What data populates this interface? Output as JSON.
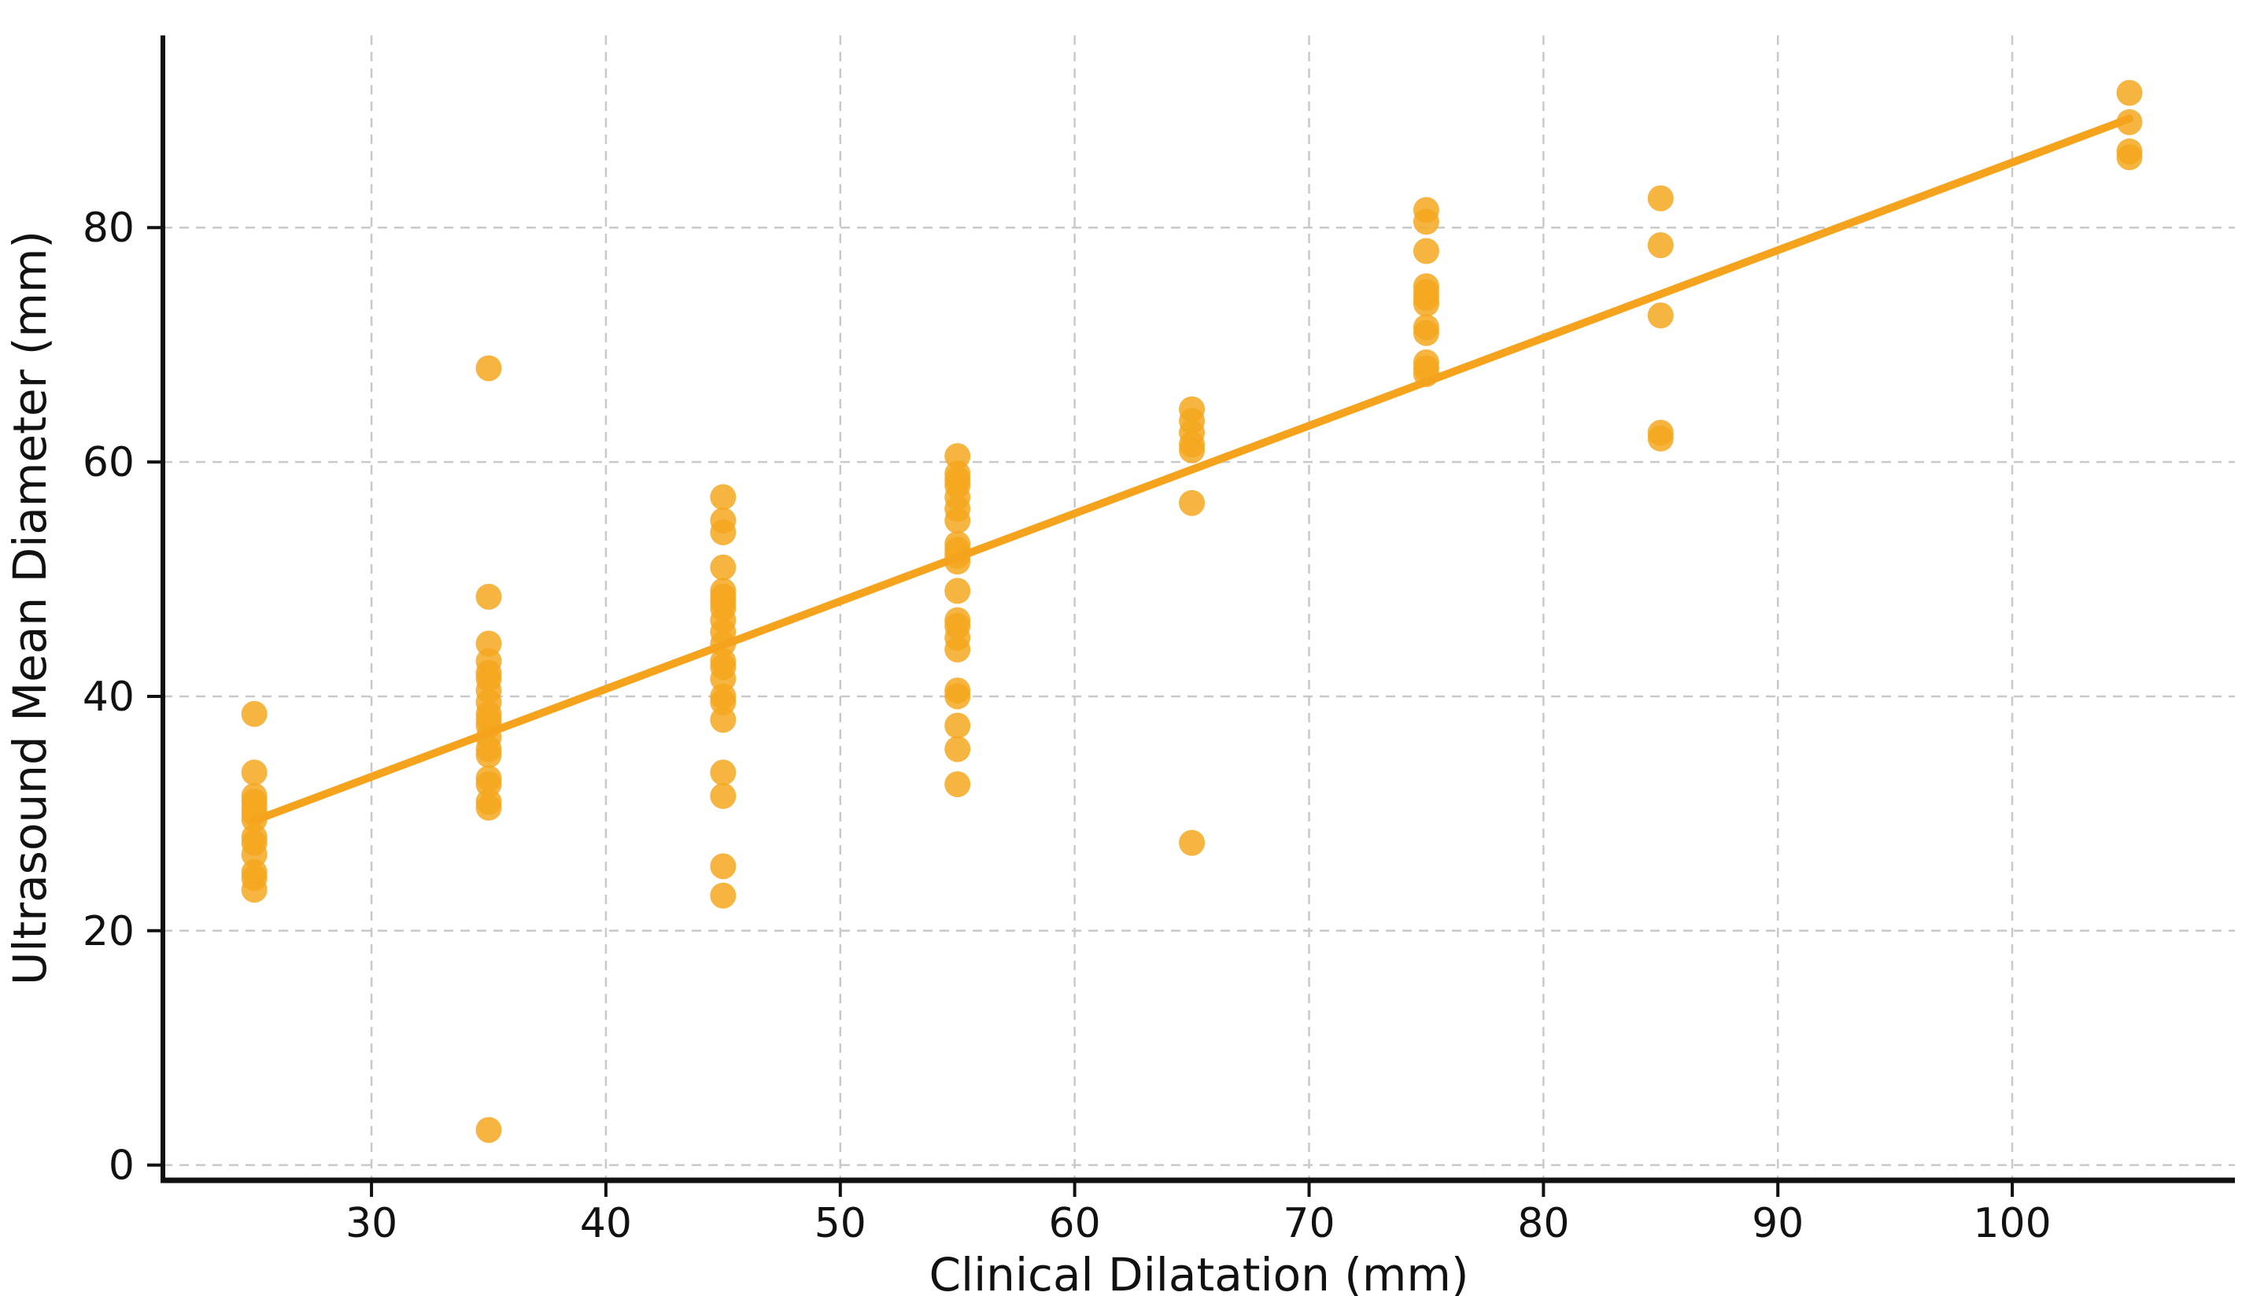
{
  "page": {
    "background": "#ffffff"
  },
  "chart_data": {
    "type": "scatter",
    "title": "",
    "xlabel": "Clinical Dilatation (mm)",
    "ylabel": "Ultrasound Mean Diameter (mm)",
    "xlim": [
      21.1,
      109.5
    ],
    "ylim": [
      -1.3,
      96.4
    ],
    "x_ticks": [
      30,
      40,
      50,
      60,
      70,
      80,
      90,
      100
    ],
    "y_ticks": [
      0,
      20,
      40,
      60,
      80
    ],
    "grid": true,
    "grid_color": "#c9c9c9",
    "axis_color": "#111111",
    "point_color": "#F5A71E",
    "line_color": "#F5A31C",
    "series": [
      {
        "name": "ultrasound-vs-clinical",
        "type": "scatter",
        "points": [
          [
            25,
            38.5
          ],
          [
            25,
            33.5
          ],
          [
            25,
            31.5
          ],
          [
            25,
            31
          ],
          [
            25,
            30.5
          ],
          [
            25,
            30
          ],
          [
            25,
            29.5
          ],
          [
            25,
            28
          ],
          [
            25,
            27.5
          ],
          [
            25,
            26.5
          ],
          [
            25,
            25
          ],
          [
            25,
            24.5
          ],
          [
            25,
            23.5
          ],
          [
            35,
            68
          ],
          [
            35,
            48.5
          ],
          [
            35,
            44.5
          ],
          [
            35,
            43
          ],
          [
            35,
            42
          ],
          [
            35,
            41.5
          ],
          [
            35,
            40.5
          ],
          [
            35,
            39.5
          ],
          [
            35,
            38.5
          ],
          [
            35,
            38
          ],
          [
            35,
            37.5
          ],
          [
            35,
            36.5
          ],
          [
            35,
            35.5
          ],
          [
            35,
            35
          ],
          [
            35,
            33
          ],
          [
            35,
            32.5
          ],
          [
            35,
            31
          ],
          [
            35,
            30.5
          ],
          [
            35,
            3
          ],
          [
            45,
            57
          ],
          [
            45,
            55
          ],
          [
            45,
            54
          ],
          [
            45,
            51
          ],
          [
            45,
            49
          ],
          [
            45,
            48.5
          ],
          [
            45,
            48
          ],
          [
            45,
            47.5
          ],
          [
            45,
            46.5
          ],
          [
            45,
            45.5
          ],
          [
            45,
            44.5
          ],
          [
            45,
            43
          ],
          [
            45,
            42.5
          ],
          [
            45,
            41.5
          ],
          [
            45,
            40
          ],
          [
            45,
            39.5
          ],
          [
            45,
            38
          ],
          [
            45,
            33.5
          ],
          [
            45,
            31.5
          ],
          [
            45,
            25.5
          ],
          [
            45,
            23
          ],
          [
            55,
            60.5
          ],
          [
            55,
            59
          ],
          [
            55,
            58.5
          ],
          [
            55,
            58
          ],
          [
            55,
            57
          ],
          [
            55,
            56
          ],
          [
            55,
            55
          ],
          [
            55,
            53
          ],
          [
            55,
            52.5
          ],
          [
            55,
            52
          ],
          [
            55,
            51.5
          ],
          [
            55,
            49
          ],
          [
            55,
            46.5
          ],
          [
            55,
            46
          ],
          [
            55,
            45
          ],
          [
            55,
            44
          ],
          [
            55,
            40.5
          ],
          [
            55,
            40
          ],
          [
            55,
            37.5
          ],
          [
            55,
            35.5
          ],
          [
            55,
            32.5
          ],
          [
            65,
            64.5
          ],
          [
            65,
            63.5
          ],
          [
            65,
            62.5
          ],
          [
            65,
            61.5
          ],
          [
            65,
            61
          ],
          [
            65,
            56.5
          ],
          [
            65,
            27.5
          ],
          [
            75,
            81.5
          ],
          [
            75,
            80.5
          ],
          [
            75,
            78
          ],
          [
            75,
            75
          ],
          [
            75,
            74.5
          ],
          [
            75,
            74
          ],
          [
            75,
            73.5
          ],
          [
            75,
            71.5
          ],
          [
            75,
            71
          ],
          [
            75,
            68.5
          ],
          [
            75,
            68
          ],
          [
            75,
            67.5
          ],
          [
            85,
            82.5
          ],
          [
            85,
            78.5
          ],
          [
            85,
            72.5
          ],
          [
            85,
            62.5
          ],
          [
            85,
            62
          ],
          [
            105,
            91.5
          ],
          [
            105,
            89
          ],
          [
            105,
            86.5
          ],
          [
            105,
            86
          ]
        ]
      },
      {
        "name": "linear-fit",
        "type": "line",
        "points": [
          [
            25,
            29.4
          ],
          [
            105,
            89.3
          ]
        ]
      }
    ]
  }
}
